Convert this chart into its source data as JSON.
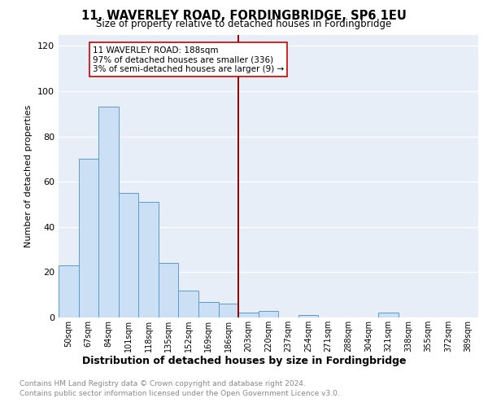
{
  "title": "11, WAVERLEY ROAD, FORDINGBRIDGE, SP6 1EU",
  "subtitle": "Size of property relative to detached houses in Fordingbridge",
  "xlabel": "Distribution of detached houses by size in Fordingbridge",
  "ylabel": "Number of detached properties",
  "categories": [
    "50sqm",
    "67sqm",
    "84sqm",
    "101sqm",
    "118sqm",
    "135sqm",
    "152sqm",
    "169sqm",
    "186sqm",
    "203sqm",
    "220sqm",
    "237sqm",
    "254sqm",
    "271sqm",
    "288sqm",
    "304sqm",
    "321sqm",
    "338sqm",
    "355sqm",
    "372sqm",
    "389sqm"
  ],
  "values": [
    23,
    70,
    93,
    55,
    51,
    24,
    12,
    7,
    6,
    2,
    3,
    0,
    1,
    0,
    0,
    0,
    2,
    0,
    0,
    0,
    0
  ],
  "bar_color": "#cce0f5",
  "bar_edge_color": "#5b9bd5",
  "marker_value": "186sqm",
  "marker_line_color": "#8b0000",
  "annotation_lines": [
    "11 WAVERLEY ROAD: 188sqm",
    "97% of detached houses are smaller (336)",
    "3% of semi-detached houses are larger (9) →"
  ],
  "annotation_box_edge_color": "#cc0000",
  "ylim": [
    0,
    125
  ],
  "yticks": [
    0,
    20,
    40,
    60,
    80,
    100,
    120
  ],
  "background_color": "#e8eef7",
  "grid_color": "#d0d8e8",
  "footer_line1": "Contains HM Land Registry data © Crown copyright and database right 2024.",
  "footer_line2": "Contains public sector information licensed under the Open Government Licence v3.0."
}
